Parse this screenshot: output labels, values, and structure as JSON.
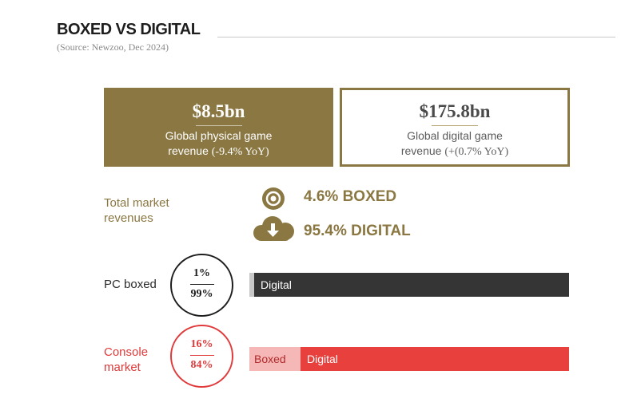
{
  "header": {
    "title": "BOXED VS DIGITAL",
    "source": "(Source: Newzoo, Dec 2024)"
  },
  "cards": {
    "physical": {
      "amount": "$8.5bn",
      "line1": "Global physical game",
      "line2_text": "revenue ",
      "line2_yoy": "(-9.4% YoY)"
    },
    "digital": {
      "amount": "$175.8bn",
      "line1": "Global digital game",
      "line2_text": "revenue ",
      "line2_yoy": "(+(0.7% YoY)"
    }
  },
  "market": {
    "label_line1": "Total market",
    "label_line2": "revenues",
    "boxed_share": "4.6% BOXED",
    "digital_share": "95.4% DIGITAL",
    "boxed_icon": "disc-icon",
    "digital_icon": "cloud-download-icon"
  },
  "colors": {
    "accent": "#8a7742",
    "pc_digital": "#353535",
    "pc_boxed": "#c8c8c8",
    "console_digital": "#e8403d",
    "console_boxed": "#f6b7b7",
    "console_text": "#e03a3a"
  },
  "chart_data": {
    "type": "bar",
    "orientation": "horizontal",
    "stacked": true,
    "categories": [
      "PC boxed",
      "Console market"
    ],
    "category_label_lines": [
      [
        "PC boxed"
      ],
      [
        "Console",
        "market"
      ]
    ],
    "series": [
      {
        "name": "Boxed",
        "values": [
          1,
          16
        ]
      },
      {
        "name": "Digital",
        "values": [
          99,
          84
        ]
      }
    ],
    "circle_labels": [
      {
        "top": "1%",
        "bottom": "99%"
      },
      {
        "top": "16%",
        "bottom": "84%"
      }
    ],
    "segment_labels": [
      {
        "boxed": "",
        "digital": "Digital"
      },
      {
        "boxed": "Boxed",
        "digital": "Digital"
      }
    ],
    "unit": "%",
    "xlim": [
      0,
      100
    ]
  }
}
